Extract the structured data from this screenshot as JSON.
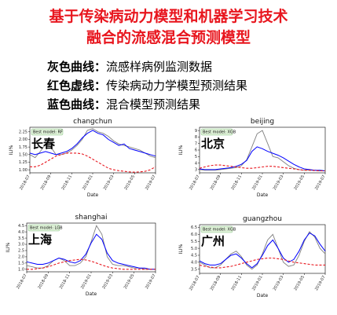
{
  "header": {
    "title_line1": "基于传染病动力模型和机器学习技术",
    "title_line2": "融合的流感混合预测模型"
  },
  "legend": [
    {
      "key": "灰色曲线：",
      "text": "流感样病例监测数据",
      "color": "#808080"
    },
    {
      "key": "红色虚线：",
      "text": "传染病动力学模型预测结果",
      "color": "#e8161e"
    },
    {
      "key": "蓝色曲线：",
      "text": "混合模型预测结果",
      "color": "#0000ff"
    }
  ],
  "chart_data": [
    {
      "type": "line",
      "title": "changchun",
      "city_label": "长春",
      "badge": "Best model: RF",
      "xlabel": "Date",
      "ylabel": "ILI%",
      "xticks": [
        "2018-07",
        "2018-09",
        "2018-11",
        "2019-01",
        "2019-03",
        "2019-05",
        "2019-07"
      ],
      "yticks": [
        "1.00",
        "1.25",
        "1.50",
        "1.75",
        "2.00",
        "2.25"
      ],
      "ylim": [
        0.9,
        2.4
      ],
      "x": [
        0,
        0.5,
        1,
        1.5,
        2,
        2.5,
        3,
        3.5,
        4,
        4.5,
        5,
        5.5,
        6,
        6.5,
        7,
        7.5,
        8,
        8.5,
        9,
        9.5,
        10,
        10.5,
        11,
        11.5,
        12
      ],
      "series": [
        {
          "color": "#808080",
          "style": "solid",
          "values": [
            1.5,
            1.4,
            1.6,
            1.85,
            1.75,
            1.5,
            1.5,
            1.55,
            1.65,
            1.8,
            2.0,
            2.3,
            2.35,
            2.25,
            2.2,
            2.1,
            1.95,
            1.85,
            1.8,
            1.75,
            1.7,
            1.65,
            1.55,
            1.45,
            1.4
          ]
        },
        {
          "color": "#0000ff",
          "style": "solid",
          "values": [
            1.55,
            1.5,
            1.55,
            1.6,
            1.55,
            1.5,
            1.55,
            1.6,
            1.7,
            1.85,
            2.05,
            2.2,
            2.3,
            2.2,
            2.15,
            2.0,
            1.9,
            1.8,
            1.85,
            1.7,
            1.65,
            1.6,
            1.55,
            1.5,
            1.45
          ]
        },
        {
          "color": "#e8161e",
          "style": "dashed",
          "values": [
            1.1,
            1.1,
            1.15,
            1.25,
            1.35,
            1.45,
            1.5,
            1.55,
            1.55,
            1.55,
            1.52,
            1.45,
            1.35,
            1.25,
            1.15,
            1.05,
            1.0,
            0.97,
            0.95,
            0.93,
            0.92,
            0.93,
            0.95,
            1.0,
            1.1
          ]
        }
      ]
    },
    {
      "type": "line",
      "title": "beijing",
      "city_label": "北京",
      "badge": "Best model: XGB",
      "xlabel": "Date",
      "ylabel": "ILI%",
      "xticks": [
        "2018-07",
        "2018-09",
        "2018-11",
        "2019-01",
        "2019-03",
        "2019-05",
        "2019-07"
      ],
      "yticks": [
        "3",
        "4",
        "5",
        "6",
        "7",
        "8",
        "9"
      ],
      "ylim": [
        2.5,
        9.5
      ],
      "x": [
        0,
        0.5,
        1,
        1.5,
        2,
        2.5,
        3,
        3.5,
        4,
        4.5,
        5,
        5.5,
        6,
        6.5,
        7,
        7.5,
        8,
        8.5,
        9,
        9.5,
        10,
        10.5,
        11,
        11.5,
        12
      ],
      "series": [
        {
          "color": "#808080",
          "style": "solid",
          "values": [
            3.0,
            2.9,
            2.9,
            2.9,
            3.0,
            3.1,
            3.2,
            3.3,
            3.6,
            4.5,
            6.5,
            8.5,
            9.0,
            7.0,
            5.0,
            4.8,
            4.2,
            3.6,
            3.2,
            3.0,
            2.9,
            2.9,
            2.9,
            2.8,
            2.8
          ]
        },
        {
          "color": "#0000ff",
          "style": "solid",
          "values": [
            3.1,
            3.0,
            3.0,
            3.0,
            3.1,
            3.2,
            3.3,
            3.5,
            3.8,
            4.4,
            5.8,
            6.5,
            6.2,
            5.8,
            5.5,
            5.2,
            4.8,
            4.3,
            3.8,
            3.4,
            3.1,
            3.0,
            2.9,
            2.9,
            2.8
          ]
        },
        {
          "color": "#e8161e",
          "style": "dashed",
          "values": [
            3.2,
            3.4,
            3.6,
            3.7,
            3.7,
            3.6,
            3.5,
            3.4,
            3.3,
            3.2,
            3.2,
            3.3,
            3.4,
            3.5,
            3.5,
            3.4,
            3.3,
            3.2,
            3.1,
            3.0,
            2.9,
            2.9,
            2.85,
            2.8,
            2.8
          ]
        }
      ]
    },
    {
      "type": "line",
      "title": "shanghai",
      "city_label": "上海",
      "badge": "Best model: LGB",
      "xlabel": "Date",
      "ylabel": "ILI%",
      "xticks": [
        "2018-07",
        "2018-09",
        "2018-11",
        "2019-01",
        "2019-03",
        "2019-05",
        "2019-07"
      ],
      "yticks": [
        "1.0",
        "1.5",
        "2.0",
        "2.5",
        "3.0",
        "3.5",
        "4.0",
        "4.5"
      ],
      "ylim": [
        0.8,
        4.7
      ],
      "x": [
        0,
        0.5,
        1,
        1.5,
        2,
        2.5,
        3,
        3.5,
        4,
        4.5,
        5,
        5.5,
        6,
        6.5,
        7,
        7.5,
        8,
        8.5,
        9,
        9.5,
        10,
        10.5,
        11,
        11.5,
        12
      ],
      "series": [
        {
          "color": "#808080",
          "style": "solid",
          "values": [
            1.3,
            1.2,
            1.1,
            1.1,
            1.3,
            1.7,
            1.9,
            1.7,
            1.3,
            1.3,
            1.5,
            2.0,
            3.2,
            4.5,
            3.8,
            2.0,
            1.4,
            1.3,
            1.3,
            1.2,
            1.1,
            1.1,
            1.0,
            1.0,
            1.0
          ]
        },
        {
          "color": "#0000ff",
          "style": "solid",
          "values": [
            1.6,
            1.5,
            1.4,
            1.4,
            1.5,
            1.7,
            1.9,
            1.8,
            1.6,
            1.5,
            1.7,
            2.2,
            3.1,
            3.8,
            3.4,
            2.3,
            1.7,
            1.5,
            1.4,
            1.3,
            1.2,
            1.1,
            1.1,
            1.0,
            1.0
          ]
        },
        {
          "color": "#e8161e",
          "style": "dashed",
          "values": [
            1.0,
            1.0,
            1.05,
            1.1,
            1.2,
            1.35,
            1.5,
            1.6,
            1.7,
            1.75,
            1.8,
            1.75,
            1.65,
            1.5,
            1.35,
            1.2,
            1.1,
            1.05,
            1.0,
            1.0,
            1.0,
            1.0,
            1.0,
            1.0,
            1.0
          ]
        }
      ]
    },
    {
      "type": "line",
      "title": "guangzhou",
      "city_label": "广州",
      "badge": "Best model: XGB",
      "xlabel": "Date",
      "ylabel": "ILI%",
      "xticks": [
        "2018-07",
        "2018-09",
        "2018-11",
        "2019-01",
        "2019-03",
        "2019-05",
        "2019-07"
      ],
      "yticks": [
        "3.5",
        "4.0",
        "4.5",
        "5.0",
        "5.5",
        "6.0",
        "6.5"
      ],
      "ylim": [
        3.2,
        6.7
      ],
      "x": [
        0,
        0.5,
        1,
        1.5,
        2,
        2.5,
        3,
        3.5,
        4,
        4.5,
        5,
        5.5,
        6,
        6.5,
        7,
        7.5,
        8,
        8.5,
        9,
        9.5,
        10,
        10.5,
        11,
        11.5,
        12
      ],
      "series": [
        {
          "color": "#808080",
          "style": "solid",
          "values": [
            4.0,
            3.8,
            3.6,
            3.6,
            3.8,
            4.2,
            4.6,
            4.8,
            4.4,
            3.8,
            3.5,
            3.8,
            4.6,
            5.6,
            6.0,
            5.0,
            4.0,
            3.7,
            3.8,
            4.5,
            5.5,
            6.2,
            5.8,
            5.0,
            4.6
          ]
        },
        {
          "color": "#0000ff",
          "style": "solid",
          "values": [
            4.1,
            3.9,
            3.8,
            3.8,
            3.9,
            4.2,
            4.5,
            4.6,
            4.3,
            3.9,
            3.6,
            3.9,
            4.5,
            5.2,
            5.6,
            5.0,
            4.3,
            4.0,
            4.2,
            4.8,
            5.6,
            6.1,
            5.9,
            5.3,
            4.8
          ]
        },
        {
          "color": "#e8161e",
          "style": "dashed",
          "values": [
            3.8,
            3.7,
            3.65,
            3.6,
            3.6,
            3.65,
            3.7,
            3.8,
            3.9,
            4.0,
            4.1,
            4.2,
            4.25,
            4.3,
            4.3,
            4.25,
            4.2,
            4.1,
            4.0,
            3.95,
            3.9,
            3.85,
            3.8,
            3.8,
            3.8
          ]
        }
      ]
    }
  ]
}
